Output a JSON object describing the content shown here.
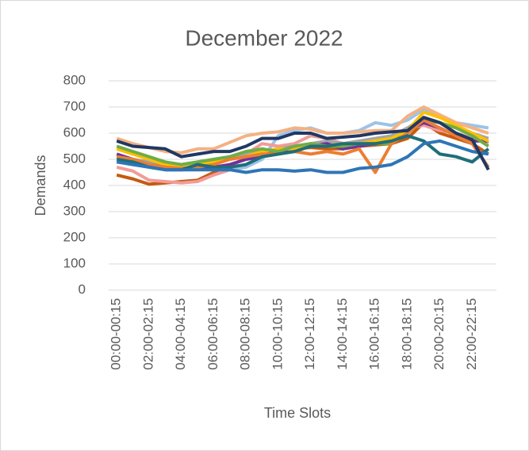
{
  "chart_data": {
    "type": "line",
    "title": "December 2022",
    "x_label": "Time Slots",
    "y_label": "Demands",
    "categories": [
      "00:00-00:15",
      null,
      "02:00-02:15",
      null,
      "04:00-04:15",
      null,
      "06:00-06:15",
      null,
      "08:00-08:15",
      null,
      "10:00-10:15",
      null,
      "12:00-12:15",
      null,
      "14:00-14:15",
      null,
      "16:00-16:15",
      null,
      "18:00-18:15",
      null,
      "20:00-20:15",
      null,
      "22:00-22:15",
      null
    ],
    "ylim": [
      0,
      800
    ],
    "yticks": [
      0,
      100,
      200,
      300,
      400,
      500,
      600,
      700,
      800
    ],
    "grid": true,
    "series": [
      {
        "color": "#9dc3e6",
        "values": [
          490,
          480,
          470,
          470,
          460,
          470,
          460,
          460,
          470,
          500,
          590,
          610,
          620,
          600,
          600,
          610,
          640,
          630,
          650,
          690,
          660,
          640,
          630,
          620
        ]
      },
      {
        "color": "#f4b183",
        "values": [
          580,
          560,
          545,
          530,
          525,
          540,
          540,
          565,
          590,
          600,
          605,
          620,
          615,
          600,
          600,
          605,
          610,
          610,
          665,
          700,
          670,
          640,
          620,
          600
        ]
      },
      {
        "color": "#c55a11",
        "values": [
          440,
          425,
          405,
          410,
          415,
          420,
          450,
          480,
          500,
          520,
          530,
          540,
          545,
          540,
          540,
          550,
          555,
          560,
          580,
          640,
          600,
          580,
          560,
          520
        ]
      },
      {
        "color": "#f19c99",
        "values": [
          470,
          455,
          420,
          415,
          410,
          415,
          440,
          460,
          520,
          560,
          550,
          560,
          590,
          580,
          560,
          560,
          570,
          580,
          620,
          630,
          610,
          600,
          580,
          560
        ]
      },
      {
        "color": "#a5a5a5",
        "values": [
          510,
          500,
          490,
          480,
          480,
          490,
          500,
          510,
          520,
          530,
          540,
          550,
          560,
          570,
          560,
          570,
          580,
          590,
          620,
          660,
          640,
          620,
          600,
          580
        ]
      },
      {
        "color": "#7030a0",
        "values": [
          520,
          500,
          480,
          470,
          460,
          465,
          470,
          480,
          500,
          510,
          520,
          540,
          550,
          560,
          540,
          550,
          560,
          570,
          610,
          640,
          620,
          590,
          570,
          570
        ]
      },
      {
        "color": "#ffc000",
        "values": [
          540,
          520,
          500,
          480,
          470,
          480,
          490,
          500,
          510,
          530,
          540,
          540,
          560,
          550,
          560,
          560,
          570,
          580,
          610,
          680,
          660,
          630,
          600,
          570
        ]
      },
      {
        "color": "#70ad47",
        "values": [
          550,
          530,
          510,
          490,
          480,
          490,
          500,
          510,
          530,
          540,
          530,
          550,
          560,
          550,
          550,
          560,
          560,
          560,
          600,
          650,
          640,
          620,
          590,
          550
        ]
      },
      {
        "color": "#ed7d31",
        "values": [
          510,
          500,
          480,
          470,
          465,
          470,
          480,
          500,
          510,
          520,
          520,
          530,
          520,
          530,
          520,
          540,
          450,
          560,
          600,
          650,
          620,
          590,
          560,
          470
        ]
      },
      {
        "color": "#1f6e7a",
        "values": [
          500,
          490,
          470,
          460,
          460,
          480,
          470,
          470,
          480,
          510,
          520,
          530,
          550,
          550,
          560,
          560,
          560,
          570,
          590,
          570,
          520,
          510,
          490,
          540
        ]
      },
      {
        "color": "#2e75b6",
        "values": [
          490,
          480,
          470,
          460,
          460,
          460,
          460,
          460,
          450,
          460,
          460,
          455,
          460,
          450,
          450,
          465,
          470,
          480,
          510,
          560,
          570,
          550,
          530,
          520
        ]
      },
      {
        "color": "#203864",
        "values": [
          570,
          550,
          545,
          540,
          510,
          520,
          530,
          530,
          550,
          580,
          580,
          600,
          600,
          580,
          585,
          590,
          600,
          605,
          610,
          660,
          640,
          600,
          575,
          460
        ]
      }
    ]
  }
}
